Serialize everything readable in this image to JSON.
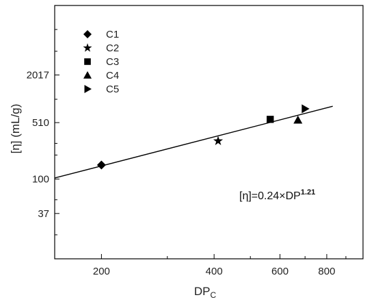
{
  "chart_data": {
    "type": "scatter",
    "x_scale": "log",
    "y_scale": "log",
    "xlim": [
      150,
      1000
    ],
    "ylim": [
      10,
      15000
    ],
    "xlabel": "DP",
    "xlabel_sub": "C",
    "ylabel": "[η] (mL/g)",
    "x_ticks": [
      200,
      400,
      600,
      800
    ],
    "y_ticks": [
      37,
      100,
      510,
      2017
    ],
    "legend": {
      "position": "top-left"
    },
    "series": [
      {
        "name": "C1",
        "marker": "diamond",
        "points": [
          [
            200,
            150
          ]
        ]
      },
      {
        "name": "C2",
        "marker": "star",
        "points": [
          [
            410,
            300
          ]
        ]
      },
      {
        "name": "C3",
        "marker": "square",
        "points": [
          [
            565,
            560
          ]
        ]
      },
      {
        "name": "C4",
        "marker": "triangle-up",
        "points": [
          [
            670,
            550
          ]
        ]
      },
      {
        "name": "C5",
        "marker": "triangle-right",
        "points": [
          [
            700,
            760
          ]
        ]
      }
    ],
    "fit_line": {
      "coef": 0.24,
      "exponent": 1.21,
      "x_range": [
        150,
        830
      ]
    },
    "equation": {
      "base": "[η]=0.24×DP",
      "exponent": "1.21"
    }
  }
}
